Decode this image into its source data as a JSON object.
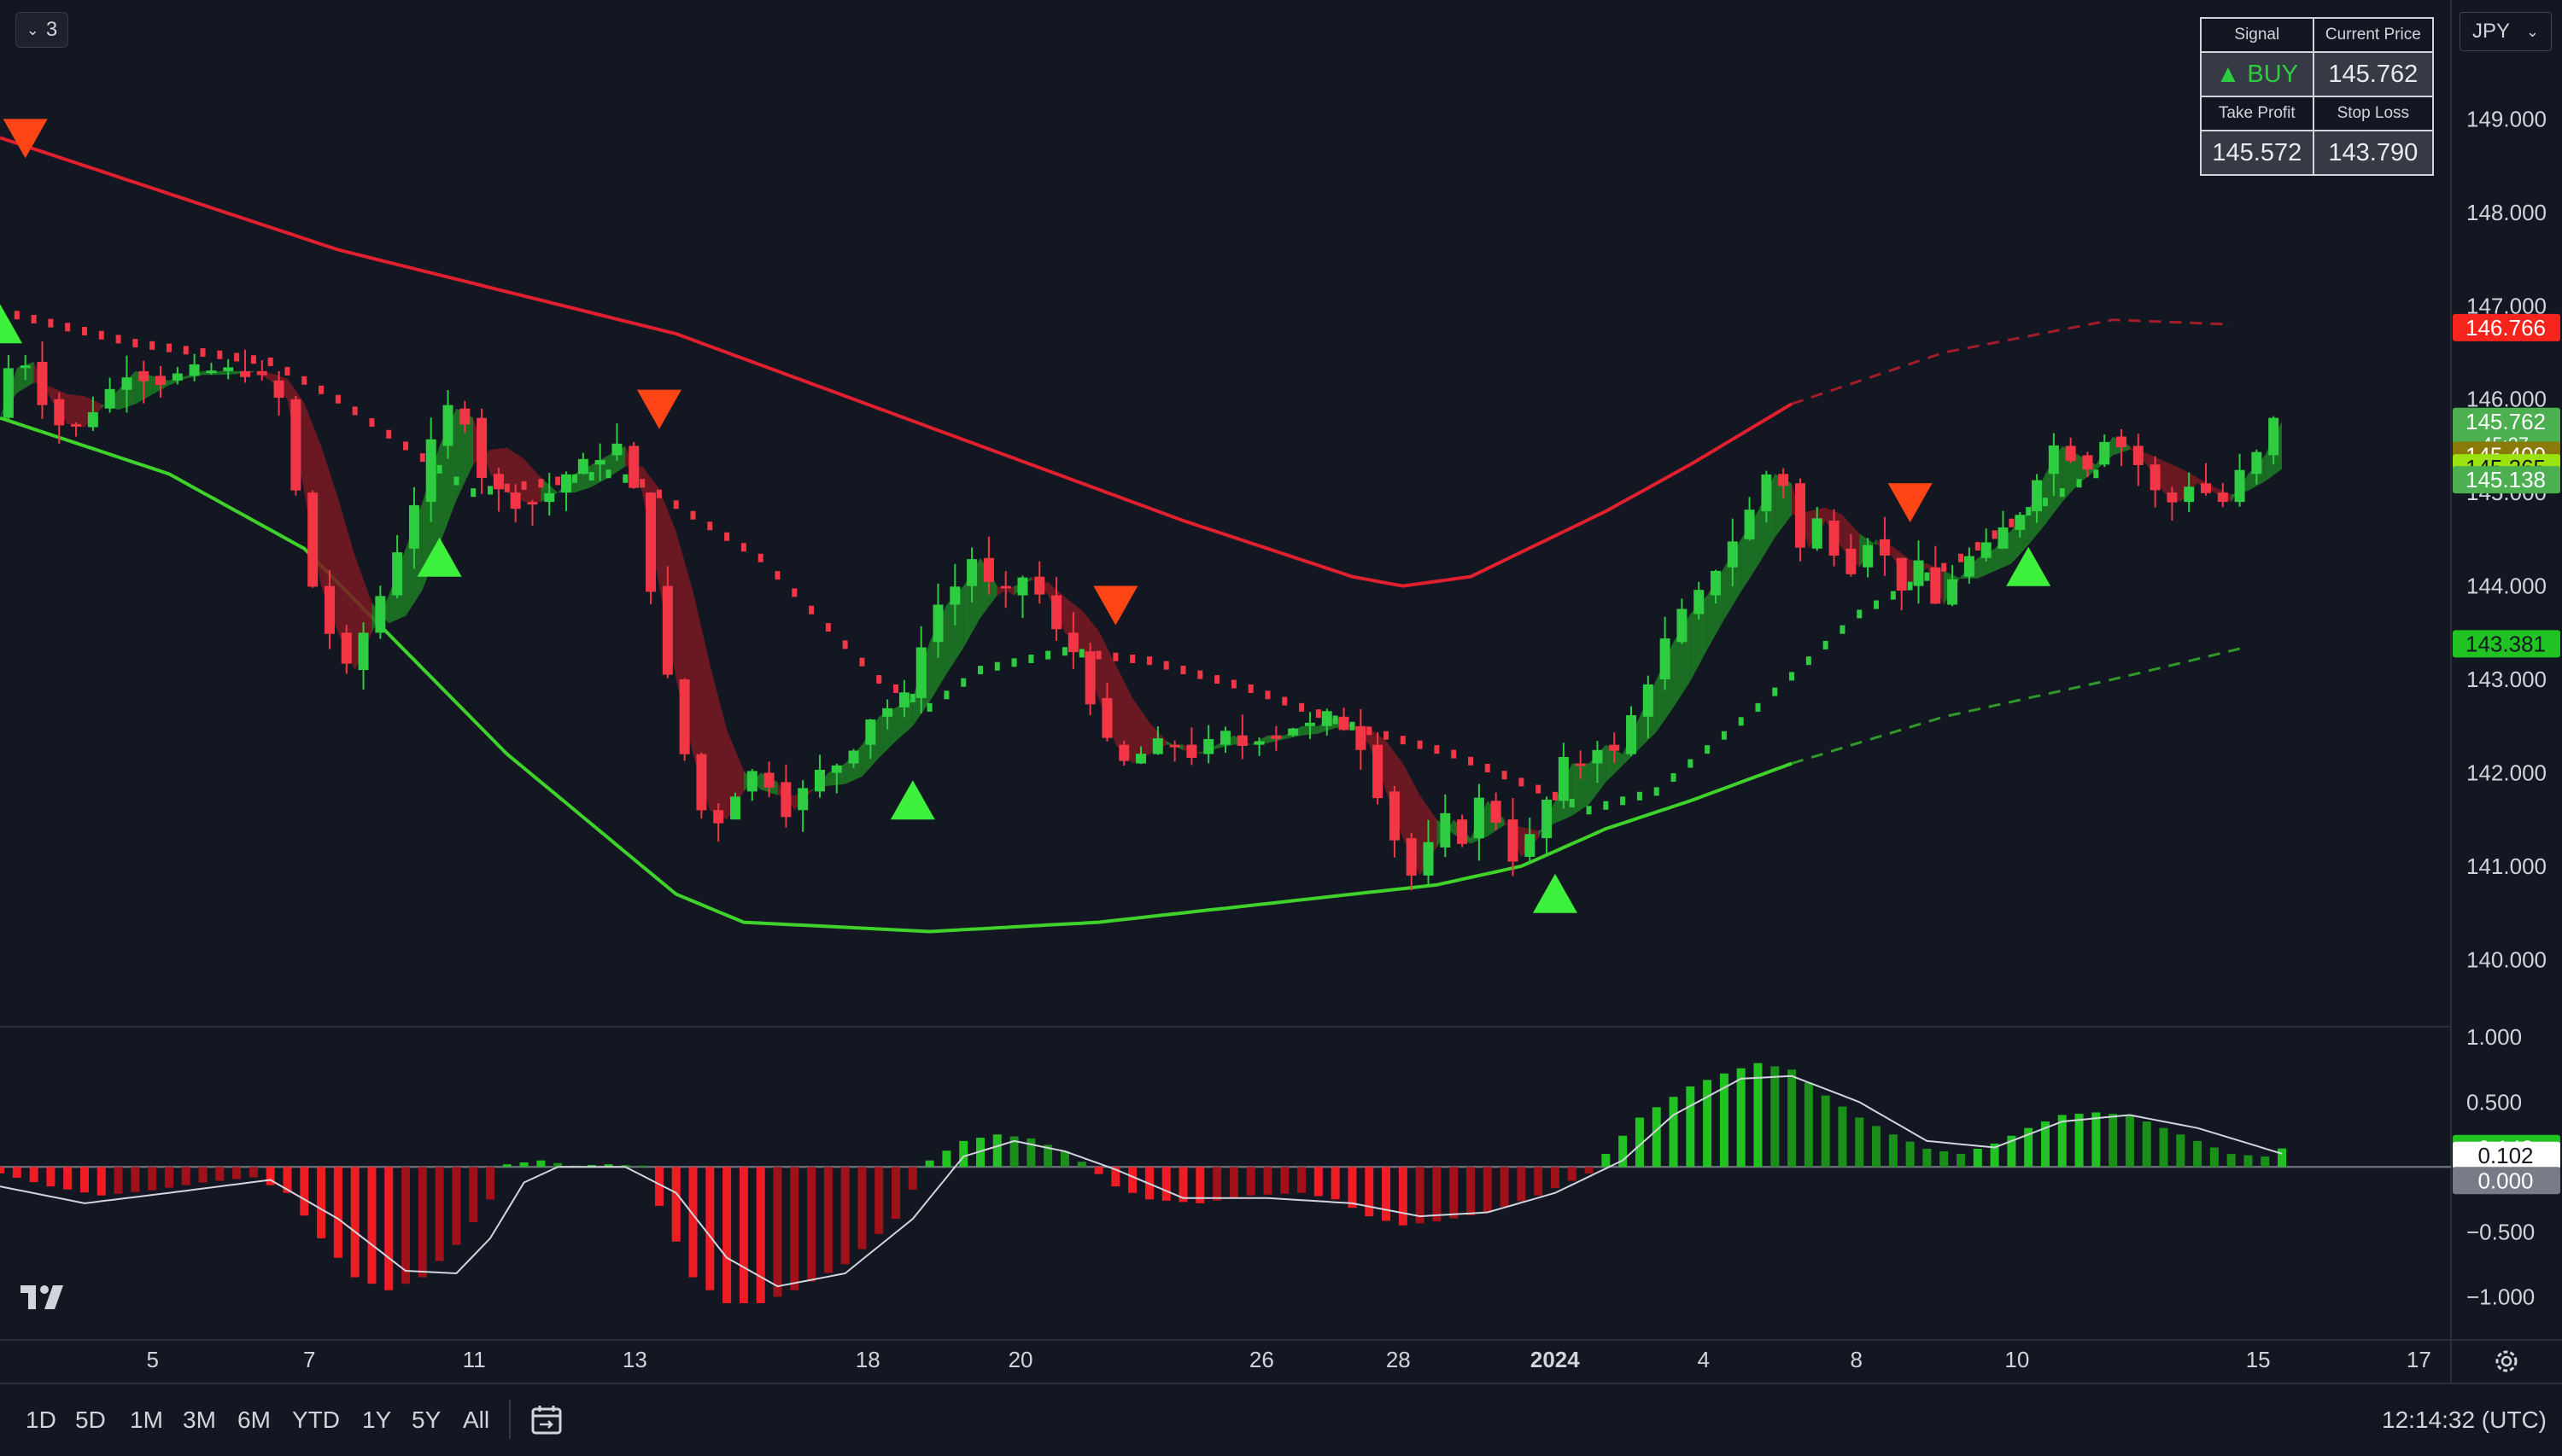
{
  "legend": {
    "count": "3",
    "chevron_icon": "chevron-down-icon"
  },
  "currency": {
    "label": "JPY",
    "chevron_icon": "chevron-down-icon"
  },
  "signal_table": {
    "signal_header": "Signal",
    "current_price_header": "Current Price",
    "signal_value": "▲ BUY",
    "current_price": "145.762",
    "take_profit_header": "Take Profit",
    "stop_loss_header": "Stop Loss",
    "take_profit": "145.572",
    "stop_loss": "143.790"
  },
  "timeframes": [
    "1D",
    "5D",
    "1M",
    "3M",
    "6M",
    "YTD",
    "1Y",
    "5Y",
    "All"
  ],
  "clock": "12:14:32 (UTC)",
  "colors": {
    "background": "#131722",
    "up": "#2ecc40",
    "down": "#f23645",
    "upper_band": "#e0202e",
    "lower_band": "#3fd22a",
    "signal_up": "#3cf03c",
    "signal_down": "#ff4515"
  },
  "chart_data": [
    {
      "type": "candlestick",
      "symbol_currency": "JPY",
      "y_ticks": [
        149.0,
        148.0,
        147.0,
        146.0,
        145.0,
        144.0,
        143.0,
        142.0,
        141.0,
        140.0
      ],
      "y_tick_labels": [
        "149.000",
        "148.000",
        "147.000",
        "146.000",
        "145.000",
        "144.000",
        "143.000",
        "142.000",
        "141.000",
        "140.000"
      ],
      "ylim": [
        139.4,
        150.0
      ],
      "x_tick_labels": [
        "5",
        "7",
        "11",
        "13",
        "18",
        "20",
        "26",
        "28",
        "2024",
        "4",
        "8",
        "10",
        "15",
        "17"
      ],
      "x_tick_bold": [
        "2024"
      ],
      "price_labels": [
        {
          "text": "146.766",
          "value": 146.766,
          "color": "#f7231d",
          "text_color": "#ffffff"
        },
        {
          "text": "145.762",
          "sub": "45:27",
          "value": 145.762,
          "color": "#4caf50",
          "text_color": "#ffffff"
        },
        {
          "text": "145.400",
          "value": 145.4,
          "color": "#8a7a0a",
          "text_color": "#ffffff"
        },
        {
          "text": "145.265",
          "value": 145.265,
          "color": "#9be30e",
          "text_color": "#131722"
        },
        {
          "text": "145.138",
          "value": 145.138,
          "color": "#4caf50",
          "text_color": "#ffffff"
        },
        {
          "text": "143.381",
          "value": 143.381,
          "color": "#21c322",
          "text_color": "#131722"
        }
      ],
      "close_path": [
        [
          0,
          145.8
        ],
        [
          1.5,
          146.6
        ],
        [
          3,
          146.0
        ],
        [
          4.5,
          145.6
        ],
        [
          6,
          145.9
        ],
        [
          8,
          146.3
        ],
        [
          10,
          146.2
        ],
        [
          12,
          146.3
        ],
        [
          14,
          146.3
        ],
        [
          15.5,
          146.3
        ],
        [
          17,
          146.0
        ],
        [
          18,
          145.0
        ],
        [
          19,
          144.0
        ],
        [
          20,
          143.5
        ],
        [
          21,
          143.1
        ],
        [
          22,
          143.5
        ],
        [
          23,
          143.9
        ],
        [
          24,
          144.4
        ],
        [
          25,
          144.9
        ],
        [
          26,
          145.5
        ],
        [
          27,
          145.9
        ],
        [
          28,
          145.8
        ],
        [
          29,
          145.2
        ],
        [
          30,
          145.0
        ],
        [
          31,
          144.9
        ],
        [
          32,
          144.9
        ],
        [
          33,
          145.0
        ],
        [
          34,
          145.2
        ],
        [
          35,
          145.3
        ],
        [
          36,
          145.4
        ],
        [
          37,
          145.5
        ],
        [
          38,
          145.0
        ],
        [
          39,
          144.0
        ],
        [
          40,
          143.0
        ],
        [
          41,
          142.2
        ],
        [
          42,
          141.6
        ],
        [
          43,
          141.5
        ],
        [
          44,
          141.8
        ],
        [
          45,
          142.0
        ],
        [
          46,
          141.9
        ],
        [
          47,
          141.6
        ],
        [
          48,
          141.8
        ],
        [
          49,
          142.0
        ],
        [
          50,
          142.1
        ],
        [
          51,
          142.3
        ],
        [
          52,
          142.6
        ],
        [
          53,
          142.7
        ],
        [
          54,
          142.8
        ],
        [
          55,
          143.4
        ],
        [
          56,
          143.8
        ],
        [
          57,
          144.0
        ],
        [
          58,
          144.3
        ],
        [
          59,
          144.0
        ],
        [
          60,
          143.9
        ],
        [
          61,
          144.1
        ],
        [
          62,
          143.9
        ],
        [
          63,
          143.5
        ],
        [
          64,
          143.3
        ],
        [
          65,
          142.8
        ],
        [
          66,
          142.3
        ],
        [
          67,
          142.1
        ],
        [
          68,
          142.2
        ],
        [
          69,
          142.3
        ],
        [
          70,
          142.3
        ],
        [
          71,
          142.2
        ],
        [
          72,
          142.3
        ],
        [
          73,
          142.4
        ],
        [
          74,
          142.3
        ],
        [
          75,
          142.4
        ],
        [
          76,
          142.4
        ],
        [
          77,
          142.5
        ],
        [
          78,
          142.5
        ],
        [
          79,
          142.6
        ],
        [
          80,
          142.5
        ],
        [
          81,
          142.3
        ],
        [
          82,
          141.8
        ],
        [
          83,
          141.3
        ],
        [
          84,
          140.9
        ],
        [
          85,
          141.2
        ],
        [
          86,
          141.5
        ],
        [
          87,
          141.3
        ],
        [
          88,
          141.7
        ],
        [
          89,
          141.5
        ],
        [
          90,
          141.1
        ],
        [
          91,
          141.3
        ],
        [
          92,
          141.7
        ],
        [
          93,
          142.1
        ],
        [
          94,
          142.1
        ],
        [
          95,
          142.3
        ],
        [
          96,
          142.2
        ],
        [
          97,
          142.6
        ],
        [
          98,
          143.0
        ],
        [
          99,
          143.4
        ],
        [
          100,
          143.7
        ],
        [
          101,
          143.9
        ],
        [
          102,
          144.2
        ],
        [
          103,
          144.5
        ],
        [
          104,
          144.8
        ],
        [
          105,
          145.2
        ],
        [
          106,
          145.1
        ],
        [
          107,
          144.4
        ],
        [
          108,
          144.7
        ],
        [
          109,
          144.4
        ],
        [
          110,
          144.2
        ],
        [
          111,
          144.5
        ],
        [
          112,
          144.3
        ],
        [
          113,
          144.0
        ],
        [
          114,
          144.2
        ],
        [
          115,
          143.8
        ],
        [
          116,
          144.1
        ],
        [
          117,
          144.3
        ],
        [
          118,
          144.4
        ],
        [
          119,
          144.6
        ],
        [
          120,
          144.8
        ],
        [
          121,
          145.2
        ],
        [
          122,
          145.5
        ],
        [
          123,
          145.4
        ],
        [
          124,
          145.3
        ],
        [
          125,
          145.6
        ],
        [
          126,
          145.5
        ],
        [
          127,
          145.3
        ],
        [
          128,
          145.0
        ],
        [
          129,
          144.9
        ],
        [
          130,
          145.1
        ],
        [
          131,
          145.0
        ],
        [
          132,
          144.9
        ],
        [
          133,
          145.2
        ],
        [
          134,
          145.4
        ],
        [
          135,
          145.762
        ]
      ],
      "upper_band": [
        [
          0,
          148.8
        ],
        [
          20,
          147.6
        ],
        [
          40,
          146.7
        ],
        [
          55,
          145.7
        ],
        [
          70,
          144.7
        ],
        [
          80,
          144.1
        ],
        [
          83,
          144.0
        ],
        [
          87,
          144.1
        ],
        [
          95,
          144.8
        ],
        [
          100,
          145.3
        ],
        [
          106,
          145.95
        ],
        [
          115,
          146.5
        ],
        [
          125,
          146.85
        ],
        [
          132,
          146.8
        ]
      ],
      "lower_band": [
        [
          0,
          145.8
        ],
        [
          10,
          145.2
        ],
        [
          18,
          144.4
        ],
        [
          24,
          143.3
        ],
        [
          30,
          142.2
        ],
        [
          36,
          141.3
        ],
        [
          40,
          140.7
        ],
        [
          44,
          140.4
        ],
        [
          55,
          140.3
        ],
        [
          65,
          140.4
        ],
        [
          75,
          140.6
        ],
        [
          85,
          140.8
        ],
        [
          90,
          141.0
        ],
        [
          95,
          141.4
        ],
        [
          100,
          141.7
        ],
        [
          106,
          142.1
        ],
        [
          115,
          142.6
        ],
        [
          125,
          143.0
        ],
        [
          133,
          143.35
        ]
      ],
      "band_dashed_from_x": 106,
      "trail_stop": [
        [
          1,
          146.9
        ],
        [
          8,
          146.6
        ],
        [
          16,
          146.4
        ],
        [
          20,
          146.0
        ],
        [
          28,
          145.0
        ],
        [
          36,
          145.2
        ],
        [
          38,
          145.1
        ],
        [
          45,
          144.3
        ],
        [
          52,
          143.0
        ],
        [
          55,
          142.7
        ],
        [
          58,
          143.1
        ],
        [
          63,
          143.3
        ],
        [
          68,
          143.2
        ],
        [
          74,
          142.9
        ],
        [
          80,
          142.5
        ],
        [
          86,
          142.2
        ],
        [
          90,
          141.9
        ],
        [
          94,
          141.6
        ],
        [
          98,
          141.8
        ],
        [
          104,
          142.7
        ],
        [
          110,
          143.7
        ],
        [
          116,
          144.3
        ],
        [
          120,
          144.8
        ],
        [
          124,
          145.2
        ]
      ],
      "buy_signals": [
        {
          "x": 0,
          "y": 146.8
        },
        {
          "x": 26,
          "y": 144.3
        },
        {
          "x": 54,
          "y": 141.7
        },
        {
          "x": 92,
          "y": 140.7
        },
        {
          "x": 120,
          "y": 144.2
        }
      ],
      "sell_signals": [
        {
          "x": 1.5,
          "y": 148.8
        },
        {
          "x": 39,
          "y": 145.9
        },
        {
          "x": 66,
          "y": 143.8
        },
        {
          "x": 113,
          "y": 144.9
        }
      ],
      "time_axis": {
        "bars": 136,
        "x_max": 145
      }
    },
    {
      "type": "bar",
      "name": "oscillator",
      "y_ticks": [
        1.0,
        0.5,
        0.0,
        -0.5,
        -1.0
      ],
      "y_tick_labels": [
        "1.000",
        "0.500",
        "0.000",
        "−0.500",
        "−1.000"
      ],
      "ylim": [
        -1.3,
        1.1
      ],
      "value_labels": [
        {
          "text": "0.142",
          "value": 0.142,
          "color": "#22c222",
          "text_color": "#ffffff"
        },
        {
          "text": "0.102",
          "value": 0.102,
          "color": "#ffffff",
          "text_color": "#131722"
        },
        {
          "text": "0.000",
          "value": 0.0,
          "color": "#787b86",
          "text_color": "#ffffff"
        }
      ],
      "histogram": [
        [
          0,
          -0.05
        ],
        [
          3,
          -0.15
        ],
        [
          6,
          -0.22
        ],
        [
          9,
          -0.18
        ],
        [
          12,
          -0.12
        ],
        [
          15,
          -0.08
        ],
        [
          17,
          -0.2
        ],
        [
          19,
          -0.55
        ],
        [
          21,
          -0.85
        ],
        [
          23,
          -0.95
        ],
        [
          25,
          -0.85
        ],
        [
          27,
          -0.6
        ],
        [
          29,
          -0.25
        ],
        [
          30,
          0.02
        ],
        [
          32,
          0.05
        ],
        [
          34,
          0.01
        ],
        [
          36,
          0.02
        ],
        [
          38,
          0.01
        ],
        [
          39,
          -0.3
        ],
        [
          41,
          -0.85
        ],
        [
          43,
          -1.05
        ],
        [
          45,
          -1.05
        ],
        [
          47,
          -0.95
        ],
        [
          50,
          -0.75
        ],
        [
          53,
          -0.4
        ],
        [
          55,
          0.05
        ],
        [
          57,
          0.2
        ],
        [
          59,
          0.25
        ],
        [
          61,
          0.22
        ],
        [
          63,
          0.12
        ],
        [
          64,
          0.04
        ],
        [
          66,
          -0.15
        ],
        [
          68,
          -0.25
        ],
        [
          71,
          -0.28
        ],
        [
          74,
          -0.22
        ],
        [
          77,
          -0.2
        ],
        [
          79,
          -0.25
        ],
        [
          81,
          -0.38
        ],
        [
          83,
          -0.45
        ],
        [
          85,
          -0.42
        ],
        [
          88,
          -0.35
        ],
        [
          91,
          -0.22
        ],
        [
          94,
          -0.05
        ],
        [
          95,
          0.1
        ],
        [
          97,
          0.38
        ],
        [
          100,
          0.62
        ],
        [
          102,
          0.72
        ],
        [
          104,
          0.8
        ],
        [
          106,
          0.75
        ],
        [
          108,
          0.55
        ],
        [
          110,
          0.38
        ],
        [
          112,
          0.25
        ],
        [
          114,
          0.14
        ],
        [
          116,
          0.1
        ],
        [
          118,
          0.18
        ],
        [
          120,
          0.3
        ],
        [
          122,
          0.4
        ],
        [
          124,
          0.42
        ],
        [
          126,
          0.4
        ],
        [
          128,
          0.3
        ],
        [
          130,
          0.2
        ],
        [
          132,
          0.1
        ],
        [
          134,
          0.08
        ],
        [
          135,
          0.142
        ]
      ],
      "signal_line": [
        [
          0,
          -0.15
        ],
        [
          5,
          -0.28
        ],
        [
          10,
          -0.2
        ],
        [
          16,
          -0.1
        ],
        [
          20,
          -0.4
        ],
        [
          24,
          -0.8
        ],
        [
          27,
          -0.82
        ],
        [
          29,
          -0.55
        ],
        [
          31,
          -0.12
        ],
        [
          33,
          0.0
        ],
        [
          37,
          0.0
        ],
        [
          40,
          -0.2
        ],
        [
          43,
          -0.7
        ],
        [
          46,
          -0.92
        ],
        [
          50,
          -0.82
        ],
        [
          54,
          -0.4
        ],
        [
          57,
          0.08
        ],
        [
          60,
          0.2
        ],
        [
          63,
          0.12
        ],
        [
          66,
          -0.02
        ],
        [
          70,
          -0.24
        ],
        [
          75,
          -0.24
        ],
        [
          80,
          -0.28
        ],
        [
          84,
          -0.38
        ],
        [
          88,
          -0.35
        ],
        [
          92,
          -0.2
        ],
        [
          96,
          0.05
        ],
        [
          99,
          0.4
        ],
        [
          103,
          0.68
        ],
        [
          106,
          0.7
        ],
        [
          110,
          0.5
        ],
        [
          114,
          0.2
        ],
        [
          118,
          0.15
        ],
        [
          122,
          0.35
        ],
        [
          126,
          0.4
        ],
        [
          130,
          0.3
        ],
        [
          135,
          0.102
        ]
      ]
    }
  ]
}
